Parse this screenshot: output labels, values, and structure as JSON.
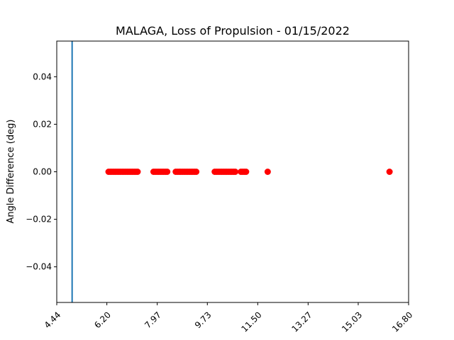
{
  "chart_data": {
    "type": "scatter",
    "title": "MALAGA, Loss of Propulsion - 01/15/2022",
    "xlabel": "",
    "ylabel": "Angle Difference (deg)",
    "xlim": [
      4.44,
      16.8
    ],
    "ylim": [
      -0.055,
      0.055
    ],
    "xticks": [
      "4.44",
      "6.20",
      "7.97",
      "9.73",
      "11.50",
      "13.27",
      "15.03",
      "16.80"
    ],
    "xtick_values": [
      4.44,
      6.2,
      7.97,
      9.73,
      11.5,
      13.27,
      15.03,
      16.8
    ],
    "yticks": [
      "−0.04",
      "−0.02",
      "0.00",
      "0.02",
      "0.04"
    ],
    "ytick_values": [
      -0.04,
      -0.02,
      0.0,
      0.02,
      0.04
    ],
    "grid": false,
    "vline": {
      "x": 4.98,
      "color": "#1f77b4"
    },
    "series": [
      {
        "color": "#ff0000",
        "x": [
          6.26,
          6.32,
          6.38,
          6.44,
          6.5,
          6.56,
          6.62,
          6.68,
          6.74,
          6.8,
          6.86,
          6.92,
          6.98,
          7.04,
          7.1,
          7.16,
          7.22,
          7.28,
          7.84,
          7.9,
          7.96,
          8.02,
          8.08,
          8.14,
          8.2,
          8.26,
          8.32,
          8.62,
          8.68,
          8.74,
          8.8,
          8.86,
          8.92,
          8.98,
          9.04,
          9.1,
          9.16,
          9.22,
          9.28,
          9.34,
          9.99,
          10.05,
          10.11,
          10.17,
          10.23,
          10.29,
          10.35,
          10.41,
          10.47,
          10.53,
          10.59,
          10.65,
          10.71,
          10.91,
          10.97,
          11.03,
          11.09,
          11.85,
          16.13
        ],
        "y": [
          0,
          0,
          0,
          0,
          0,
          0,
          0,
          0,
          0,
          0,
          0,
          0,
          0,
          0,
          0,
          0,
          0,
          0,
          0,
          0,
          0,
          0,
          0,
          0,
          0,
          0,
          0,
          0,
          0,
          0,
          0,
          0,
          0,
          0,
          0,
          0,
          0,
          0,
          0,
          0,
          0,
          0,
          0,
          0,
          0,
          0,
          0,
          0,
          0,
          0,
          0,
          0,
          0,
          0,
          0,
          0,
          0,
          0,
          0
        ]
      }
    ]
  }
}
